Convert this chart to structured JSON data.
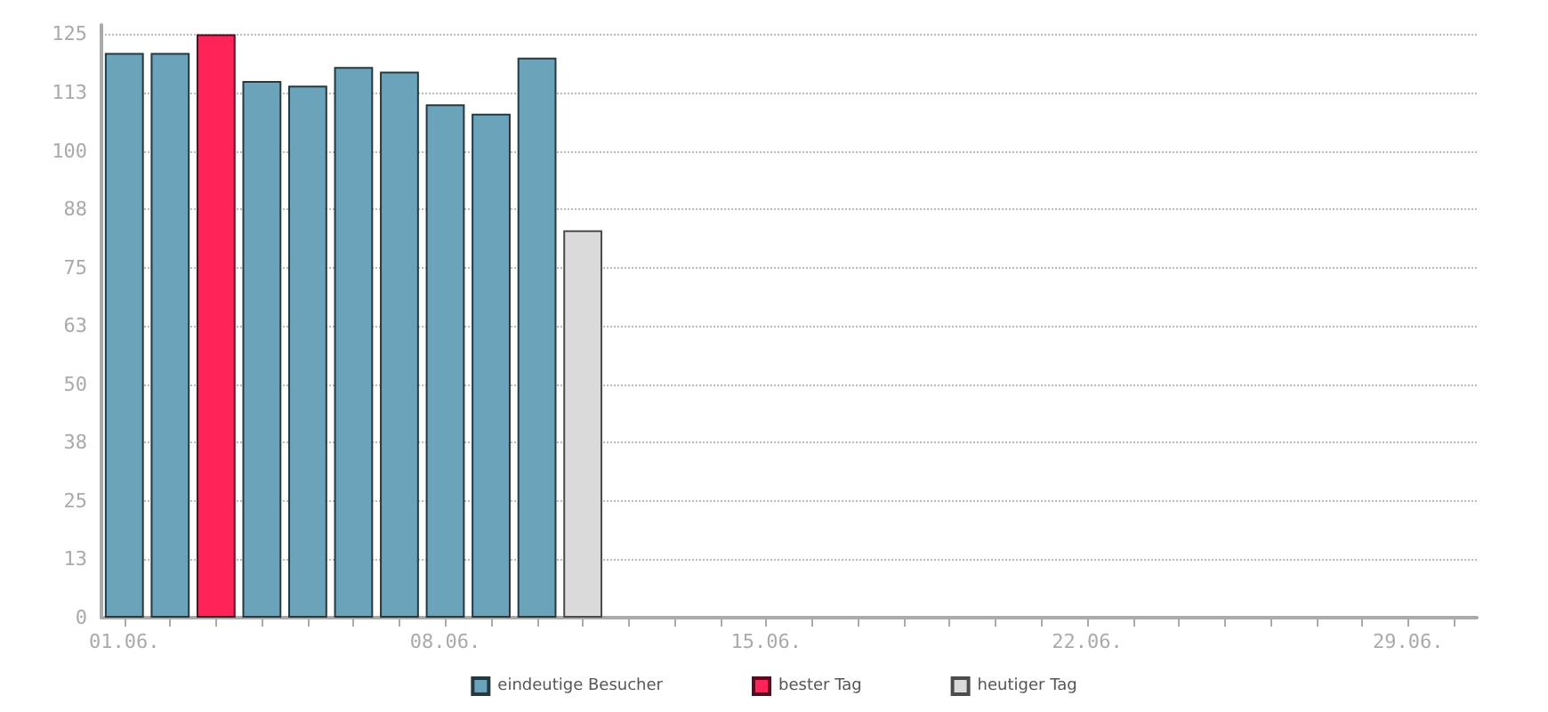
{
  "chart_data": {
    "type": "bar",
    "categories": [
      "01.06.",
      null,
      null,
      null,
      null,
      null,
      null,
      "08.06.",
      null,
      null,
      null,
      null,
      null,
      null,
      "15.06.",
      null,
      null,
      null,
      null,
      null,
      null,
      "22.06.",
      null,
      null,
      null,
      null,
      null,
      null,
      "29.06.",
      null
    ],
    "series": [
      {
        "name": "eindeutige Besucher",
        "color": "#6ba3ba",
        "values": [
          121,
          121,
          null,
          115,
          114,
          118,
          117,
          110,
          108,
          120,
          null,
          null,
          null,
          null,
          null,
          null,
          null,
          null,
          null,
          null,
          null,
          null,
          null,
          null,
          null,
          null,
          null,
          null,
          null,
          null
        ]
      },
      {
        "name": "bester Tag",
        "color": "#ff2358",
        "values": [
          null,
          null,
          125,
          null,
          null,
          null,
          null,
          null,
          null,
          null,
          null,
          null,
          null,
          null,
          null,
          null,
          null,
          null,
          null,
          null,
          null,
          null,
          null,
          null,
          null,
          null,
          null,
          null,
          null,
          null
        ]
      },
      {
        "name": "heutiger Tag",
        "color": "#dadada",
        "values": [
          null,
          null,
          null,
          null,
          null,
          null,
          null,
          null,
          null,
          null,
          83,
          null,
          null,
          null,
          null,
          null,
          null,
          null,
          null,
          null,
          null,
          null,
          null,
          null,
          null,
          null,
          null,
          null,
          null,
          null
        ]
      }
    ],
    "ylim": [
      0,
      127
    ],
    "yticks": [
      0,
      {
        "value": 12.5,
        "label": "13"
      },
      25,
      {
        "value": 37.5,
        "label": "38"
      },
      50,
      {
        "value": 62.5,
        "label": "63"
      },
      75,
      {
        "value": 87.5,
        "label": "88"
      },
      100,
      {
        "value": 112.5,
        "label": "113"
      },
      125
    ],
    "grid": "y",
    "legend": "bottom"
  }
}
